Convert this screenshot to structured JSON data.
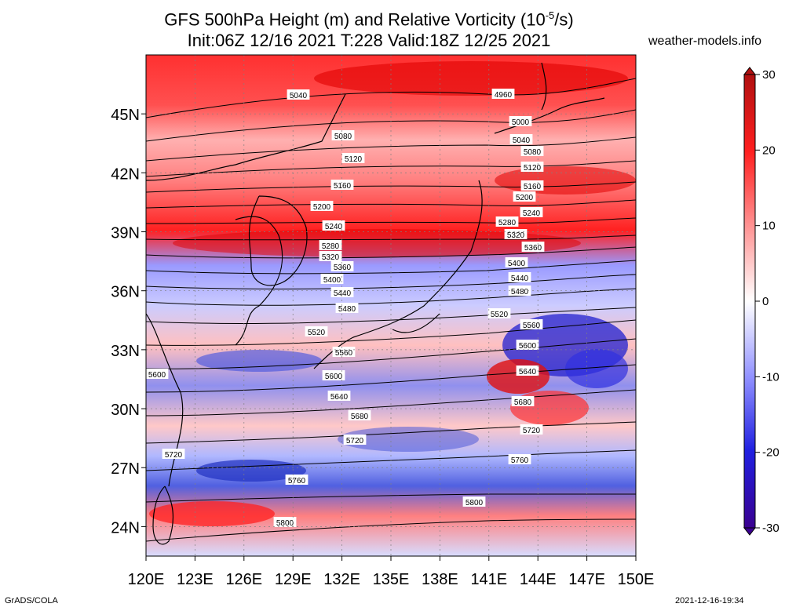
{
  "title_line1": "GFS 500hPa Height (m) and Relative Vorticity (10",
  "title_line1_sup": "-5",
  "title_line1_end": "/s)",
  "title_line2": "Init:06Z 12/16 2021 T:228 Valid:18Z 12/25 2021",
  "website": "weather-models.info",
  "map": {
    "lon_range": [
      120,
      150
    ],
    "lat_range": [
      22.5,
      48
    ],
    "lat_ticks": [
      "45N",
      "42N",
      "39N",
      "36N",
      "33N",
      "30N",
      "27N",
      "24N"
    ],
    "lat_tick_values": [
      45,
      42,
      39,
      36,
      33,
      30,
      27,
      24
    ],
    "lon_ticks": [
      "120E",
      "123E",
      "126E",
      "129E",
      "132E",
      "135E",
      "138E",
      "141E",
      "144E",
      "147E",
      "150E"
    ],
    "lon_tick_values": [
      120,
      123,
      126,
      129,
      132,
      135,
      138,
      141,
      144,
      147,
      150
    ],
    "gridlines": "dotted",
    "field": "relative vorticity shaded, 500hPa height contours"
  },
  "contour_labels": [
    "5040",
    "4960",
    "5000",
    "5040",
    "5080",
    "5080",
    "5120",
    "5120",
    "5160",
    "5160",
    "5200",
    "5200",
    "5240",
    "5240",
    "5280",
    "5280",
    "5320",
    "5320",
    "5360",
    "5360",
    "5400",
    "5400",
    "5440",
    "5440",
    "5480",
    "5480",
    "5520",
    "5520",
    "5560",
    "5560",
    "5600",
    "5600",
    "5600",
    "5640",
    "5640",
    "5680",
    "5680",
    "5720",
    "5720",
    "5720",
    "5760",
    "5760",
    "5800",
    "5800"
  ],
  "colorbar": {
    "labels": [
      "30",
      "20",
      "10",
      "0",
      "-10",
      "-20",
      "-30"
    ],
    "values": [
      30,
      20,
      10,
      0,
      -10,
      -20,
      -30
    ],
    "colors": {
      "max": "#b01010",
      "high": "#ff2020",
      "mid_high": "#ff9090",
      "zero": "#ffffff",
      "mid_low": "#9090ff",
      "low": "#2020e0",
      "min": "#3a0090"
    }
  },
  "footer_left": "GrADS/COLA",
  "footer_right": "2021-12-16-19:34"
}
